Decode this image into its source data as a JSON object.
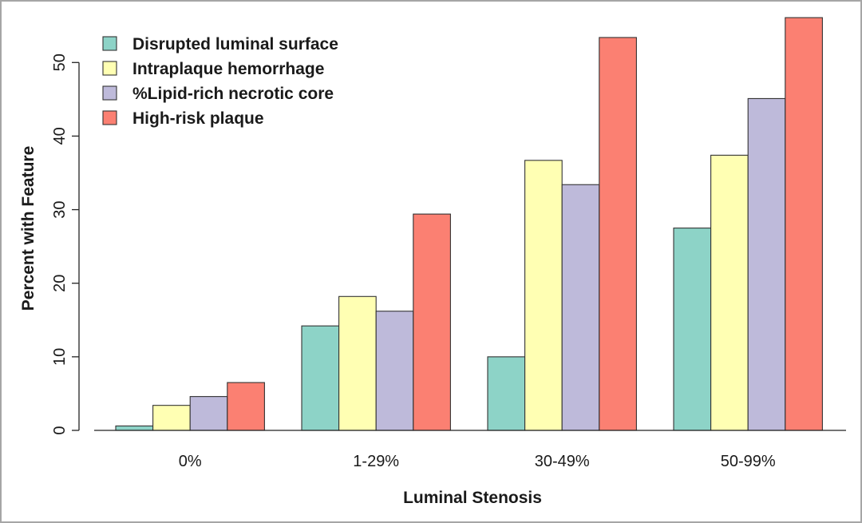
{
  "chart_data": {
    "type": "bar",
    "xlabel": "Luminal Stenosis",
    "ylabel": "Percent with Feature",
    "ylim": [
      0,
      56
    ],
    "yticks": [
      0,
      10,
      20,
      30,
      40,
      50
    ],
    "categories": [
      "0%",
      "1-29%",
      "30-49%",
      "50-99%"
    ],
    "series": [
      {
        "name": "Disrupted luminal surface",
        "color": "#8dd3c7",
        "values": [
          0.6,
          14.2,
          10.0,
          27.5
        ]
      },
      {
        "name": "Intraplaque hemorrhage",
        "color": "#ffffb3",
        "values": [
          3.4,
          18.2,
          36.7,
          37.4
        ]
      },
      {
        "name": "%Lipid-rich necrotic core",
        "color": "#bebada",
        "values": [
          4.6,
          16.2,
          33.4,
          45.1
        ]
      },
      {
        "name": "High-risk plaque",
        "color": "#fb8072",
        "values": [
          6.5,
          29.4,
          53.4,
          56.1
        ]
      }
    ],
    "legend_position": "top-left",
    "grid": false
  }
}
